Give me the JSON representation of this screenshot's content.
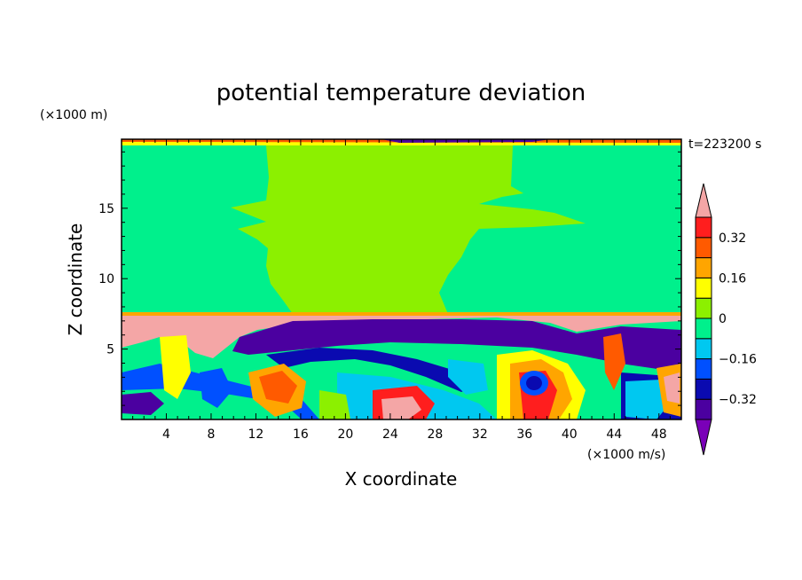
{
  "chart_data": {
    "type": "heatmap",
    "title": "potential temperature deviation",
    "xlabel": "X coordinate",
    "ylabel": "Z coordinate",
    "x_unit": "(×1000 m/s)",
    "y_unit": "(×1000 m)",
    "time_label": "t=223200 s",
    "xlim": [
      0,
      50
    ],
    "ylim": [
      0,
      19.9
    ],
    "x_ticks": [
      4,
      8,
      12,
      16,
      20,
      24,
      28,
      32,
      36,
      40,
      44,
      48
    ],
    "y_ticks": [
      5,
      10,
      15
    ],
    "colorbar": {
      "levels": [
        -0.4,
        -0.32,
        -0.24,
        -0.16,
        -0.08,
        0,
        0.08,
        0.16,
        0.24,
        0.32,
        0.4
      ],
      "colors": [
        "#7a00b8",
        "#4b00a0",
        "#0a0ab0",
        "#0050ff",
        "#00c8f0",
        "#00f08c",
        "#8cf000",
        "#ffff00",
        "#ffa500",
        "#ff5a00",
        "#ff1e1e",
        "#f4a6a6"
      ],
      "tick_labels": [
        "0.32",
        "0.16",
        "0",
        "-0.16",
        "-0.32"
      ],
      "tick_values": [
        0.32,
        0.16,
        0,
        -0.16,
        -0.32
      ],
      "extend": "both"
    },
    "regions": [
      {
        "name": "upper-layer-outer",
        "value": -0.04,
        "x": [
          0,
          50
        ],
        "z": [
          7.4,
          19.4
        ]
      },
      {
        "name": "upper-layer-center",
        "value": 0.04,
        "x": [
          13,
          33
        ],
        "z": [
          7.4,
          19.4
        ]
      },
      {
        "name": "inversion-band",
        "value": 0.4,
        "x": [
          0,
          50
        ],
        "z": [
          6.9,
          7.5
        ]
      },
      {
        "name": "top-boundary",
        "value": 0.16,
        "x": [
          0,
          50
        ],
        "z": [
          19.4,
          19.9
        ]
      }
    ]
  }
}
